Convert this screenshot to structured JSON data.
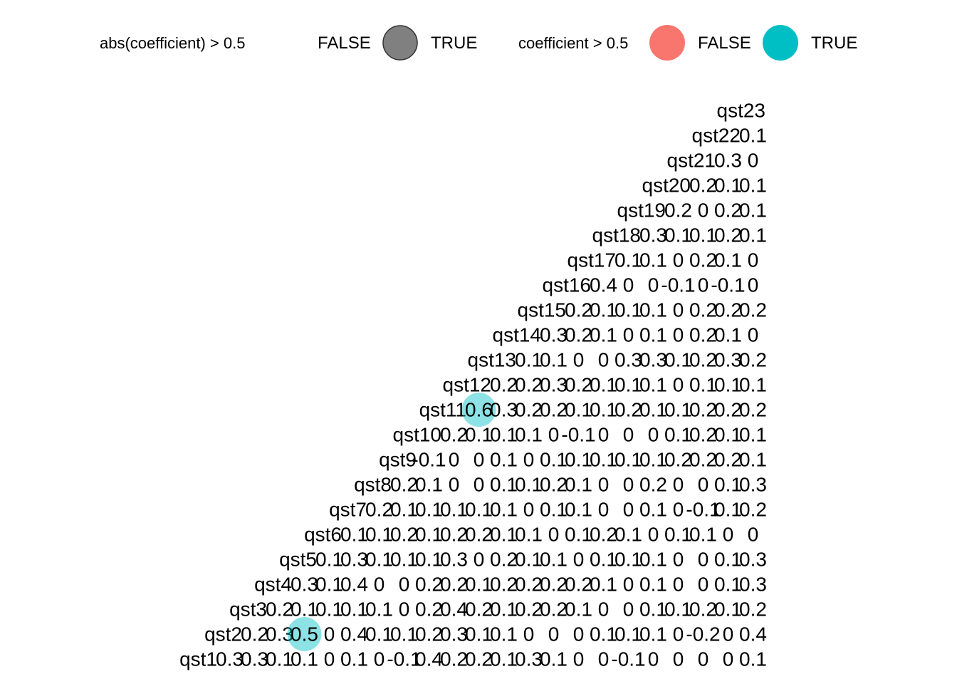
{
  "chart_data": {
    "type": "heatmap",
    "title": "",
    "variables": [
      "qst1",
      "qst2",
      "qst3",
      "qst4",
      "qst5",
      "qst6",
      "qst7",
      "qst8",
      "qst9",
      "qst10",
      "qst11",
      "qst12",
      "qst13",
      "qst14",
      "qst15",
      "qst16",
      "qst17",
      "qst18",
      "qst19",
      "qst20",
      "qst21",
      "qst22",
      "qst23"
    ],
    "rows": [
      {
        "variable": "qst23",
        "values": []
      },
      {
        "variable": "qst22",
        "values": [
          "0.1"
        ]
      },
      {
        "variable": "qst21",
        "values": [
          "0.3",
          "0"
        ]
      },
      {
        "variable": "qst20",
        "values": [
          "0.2",
          "0.1",
          "0.1"
        ]
      },
      {
        "variable": "qst19",
        "values": [
          "0.2",
          "0",
          "0.2",
          "0.1"
        ]
      },
      {
        "variable": "qst18",
        "values": [
          "0.3",
          "0.1",
          "0.1",
          "0.2",
          "0.1"
        ]
      },
      {
        "variable": "qst17",
        "values": [
          "0.1",
          "0.1",
          "0",
          "0.2",
          "0.1",
          "0"
        ]
      },
      {
        "variable": "qst16",
        "values": [
          "0.4",
          "0",
          "0",
          "-0.1",
          "0",
          "-0.1",
          "0"
        ]
      },
      {
        "variable": "qst15",
        "values": [
          "0.2",
          "0.1",
          "0.1",
          "0.1",
          "0",
          "0.2",
          "0.2",
          "0.2"
        ]
      },
      {
        "variable": "qst14",
        "values": [
          "0.3",
          "0.2",
          "0.1",
          "0",
          "0.1",
          "0",
          "0.2",
          "0.1",
          "0"
        ]
      },
      {
        "variable": "qst13",
        "values": [
          "0.1",
          "0.1",
          "0",
          "0",
          "0.3",
          "0.3",
          "0.1",
          "0.2",
          "0.3",
          "0.2"
        ]
      },
      {
        "variable": "qst12",
        "values": [
          "0.2",
          "0.2",
          "0.3",
          "0.2",
          "0.1",
          "0.1",
          "0.1",
          "0",
          "0.1",
          "0.1",
          "0.1"
        ]
      },
      {
        "variable": "qst11",
        "values": [
          "0.6",
          "0.3",
          "0.2",
          "0.2",
          "0.1",
          "0.1",
          "0.2",
          "0.1",
          "0.1",
          "0.2",
          "0.2",
          "0.2"
        ]
      },
      {
        "variable": "qst10",
        "values": [
          "0.2",
          "0.1",
          "0.1",
          "0.1",
          "0",
          "-0.1",
          "0",
          "0",
          "0",
          "0.1",
          "0.2",
          "0.1",
          "0.1"
        ]
      },
      {
        "variable": "qst9",
        "values": [
          "-0.1",
          "0",
          "0",
          "0.1",
          "0",
          "0.1",
          "0.1",
          "0.1",
          "0.1",
          "0.1",
          "0.2",
          "0.2",
          "0.2",
          "0.1"
        ]
      },
      {
        "variable": "qst8",
        "values": [
          "0.2",
          "0.1",
          "0",
          "0",
          "0.1",
          "0.1",
          "0.2",
          "0.1",
          "0",
          "0",
          "0.2",
          "0",
          "0",
          "0.1",
          "0.3"
        ]
      },
      {
        "variable": "qst7",
        "values": [
          "0.2",
          "0.1",
          "0.1",
          "0.1",
          "0.1",
          "0.1",
          "0",
          "0.1",
          "0.1",
          "0",
          "0",
          "0.1",
          "0",
          "-0.1",
          "0.1",
          "0.2"
        ]
      },
      {
        "variable": "qst6",
        "values": [
          "0.1",
          "0.1",
          "0.2",
          "0.1",
          "0.2",
          "0.2",
          "0.1",
          "0.1",
          "0",
          "0.1",
          "0.2",
          "0.1",
          "0",
          "0.1",
          "0.1",
          "0",
          "0"
        ]
      },
      {
        "variable": "qst5",
        "values": [
          "0.1",
          "0.3",
          "0.1",
          "0.1",
          "0.1",
          "0.3",
          "0",
          "0.2",
          "0.1",
          "0.1",
          "0",
          "0.1",
          "0.1",
          "0.1",
          "0",
          "0",
          "0.1",
          "0.3"
        ]
      },
      {
        "variable": "qst4",
        "values": [
          "0.3",
          "0.1",
          "0.4",
          "0",
          "0",
          "0.2",
          "0.2",
          "0.1",
          "0.2",
          "0.2",
          "0.2",
          "0.2",
          "0.1",
          "0",
          "0.1",
          "0",
          "0",
          "0.1",
          "0.3"
        ]
      },
      {
        "variable": "qst3",
        "values": [
          "0.2",
          "0.1",
          "0.1",
          "0.1",
          "0.1",
          "0",
          "0.2",
          "0.4",
          "0.2",
          "0.1",
          "0.2",
          "0.2",
          "0.1",
          "0",
          "0",
          "0.1",
          "0.1",
          "0.2",
          "0.1",
          "0.2"
        ]
      },
      {
        "variable": "qst2",
        "values": [
          "0.2",
          "0.3",
          "0.5",
          "0",
          "0.4",
          "0.1",
          "0.1",
          "0.2",
          "0.3",
          "0.1",
          "0.1",
          "0",
          "0",
          "0",
          "0.1",
          "0.1",
          "0.1",
          "0",
          "-0.2",
          "0",
          "0.4"
        ]
      },
      {
        "variable": "qst1",
        "values": [
          "0.3",
          "0.3",
          "0.1",
          "0.1",
          "0",
          "0.1",
          "0",
          "-0.1",
          "0.4",
          "0.2",
          "0.2",
          "0.1",
          "0.3",
          "0.1",
          "0",
          "0",
          "-0.1",
          "0",
          "0",
          "0",
          "0",
          "0.1"
        ]
      }
    ],
    "highlights": [
      {
        "row": "qst11",
        "value": "0.6"
      },
      {
        "row": "qst2",
        "value": "0.5"
      }
    ],
    "legend": {
      "placement": "top",
      "groups": [
        {
          "title": "abs(coefficient) > 0.5",
          "entries": [
            {
              "label": "FALSE",
              "color": ""
            },
            {
              "label": "TRUE",
              "color": "#808080"
            }
          ]
        },
        {
          "title": "coefficient > 0.5",
          "entries": [
            {
              "label": "FALSE",
              "color": "#F8766D"
            },
            {
              "label": "TRUE",
              "color": "#00BFC4"
            }
          ]
        }
      ]
    },
    "colors": {
      "abs_true": "#808080",
      "coef_false": "#F8766D",
      "coef_true": "#00BFC4",
      "highlight_fill": "rgba(0,191,196,0.45)"
    }
  }
}
